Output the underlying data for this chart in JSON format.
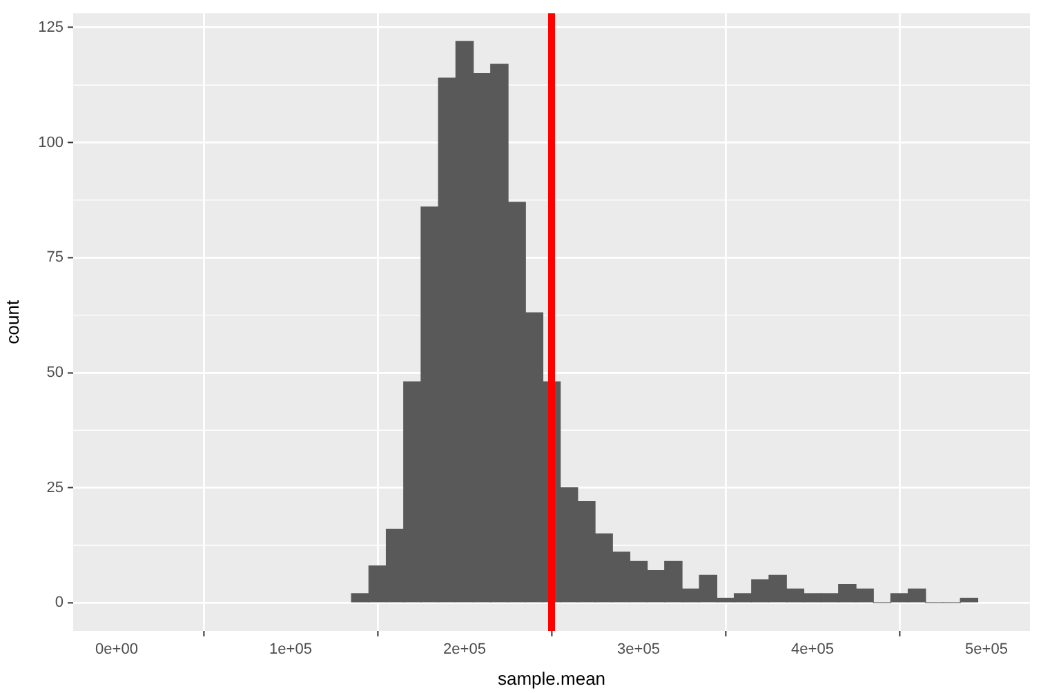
{
  "chart_data": {
    "type": "histogram",
    "xlabel": "sample.mean",
    "ylabel": "count",
    "bins": [
      135000,
      145000,
      155000,
      165000,
      175000,
      185000,
      195000,
      205000,
      215000,
      225000,
      235000,
      245000,
      255000,
      265000,
      275000,
      285000,
      295000,
      305000,
      315000,
      325000,
      335000,
      345000,
      355000,
      365000,
      375000,
      385000,
      395000,
      405000,
      415000,
      425000,
      435000,
      445000,
      455000,
      465000,
      475000,
      485000,
      495000
    ],
    "values": [
      2,
      8,
      16,
      48,
      86,
      114,
      122,
      115,
      117,
      87,
      63,
      48,
      25,
      22,
      15,
      11,
      9,
      7,
      9,
      3,
      6,
      1,
      2,
      5,
      6,
      3,
      2,
      2,
      4,
      3,
      0,
      2,
      3,
      0,
      0,
      1
    ],
    "color": "#595959",
    "xlim": [
      -25000,
      525000
    ],
    "ylim": [
      -6.1,
      128.1
    ],
    "xticks": [
      {
        "value": 0,
        "label": "0e+00"
      },
      {
        "value": 100000,
        "label": "1e+05"
      },
      {
        "value": 200000,
        "label": "2e+05"
      },
      {
        "value": 300000,
        "label": "3e+05"
      },
      {
        "value": 400000,
        "label": "4e+05"
      },
      {
        "value": 500000,
        "label": "5e+05"
      }
    ],
    "yticks": [
      0,
      25,
      50,
      75,
      100,
      125
    ],
    "grid": true,
    "ref_lines": [
      {
        "axis": "x",
        "value": 250000,
        "color": "#ff0000"
      }
    ]
  }
}
